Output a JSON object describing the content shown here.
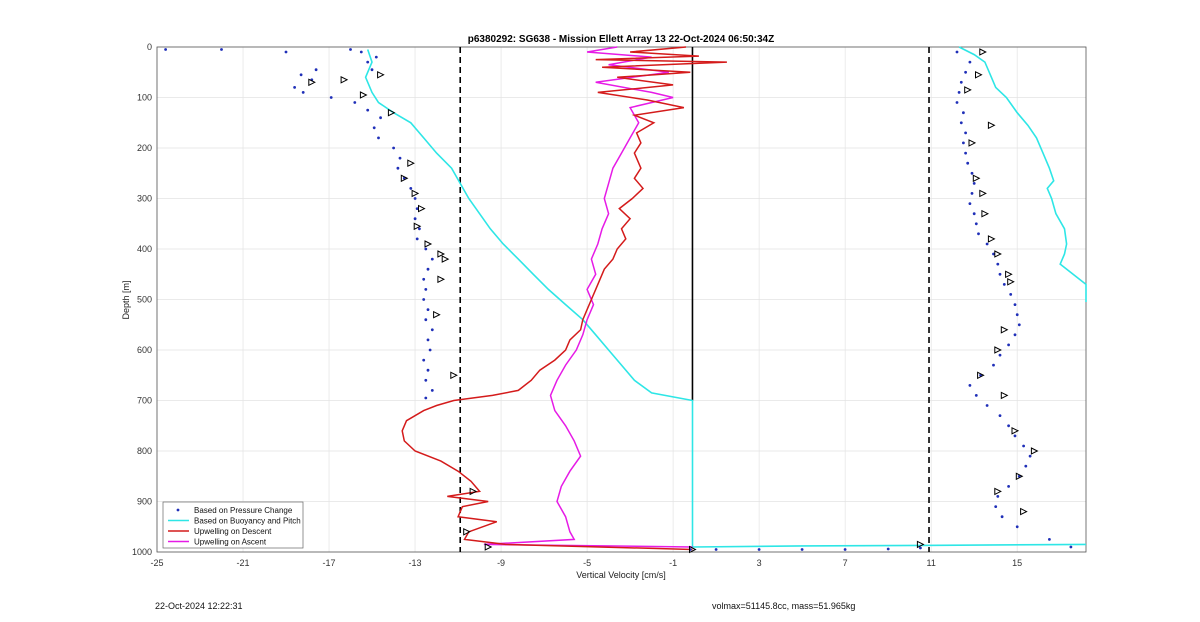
{
  "chart_data": {
    "type": "line",
    "title": "p6380292: SG638 - Mission Ellett Array 13 22-Oct-2024 06:50:34Z",
    "xlabel": "Vertical Velocity [cm/s]",
    "ylabel": "Depth [m]",
    "xlim": [
      -25,
      18.2
    ],
    "ylim": [
      1000,
      0
    ],
    "x_ticks": [
      "-25",
      "-21",
      "-17",
      "-13",
      "-9",
      "-5",
      "-1",
      "3",
      "7",
      "11",
      "15"
    ],
    "y_ticks": [
      "0",
      "100",
      "200",
      "300",
      "400",
      "500",
      "600",
      "700",
      "800",
      "900",
      "1000"
    ],
    "grid": true,
    "legend_position": "bottom-left",
    "reference_lines": [
      {
        "x": -10.9,
        "style": "dashed"
      },
      {
        "x": 10.9,
        "style": "dashed"
      },
      {
        "x": -0.1,
        "style": "solid",
        "y_range": [
          0,
          700
        ]
      }
    ],
    "series": [
      {
        "name": "Based on Pressure Change",
        "style": "points",
        "color": "#1f2fb8",
        "descent": [
          [
            -15.5,
            10
          ],
          [
            -14.8,
            20
          ],
          [
            -15.2,
            30
          ],
          [
            -15.0,
            45
          ],
          [
            -17.6,
            45
          ],
          [
            -18.3,
            55
          ],
          [
            -17.8,
            65
          ],
          [
            -18.6,
            80
          ],
          [
            -18.2,
            90
          ],
          [
            -16.9,
            100
          ],
          [
            -15.8,
            110
          ],
          [
            -15.2,
            125
          ],
          [
            -14.6,
            140
          ],
          [
            -14.9,
            160
          ],
          [
            -14.7,
            180
          ],
          [
            -14.0,
            200
          ],
          [
            -13.7,
            220
          ],
          [
            -13.8,
            240
          ],
          [
            -13.5,
            260
          ],
          [
            -13.2,
            280
          ],
          [
            -13.0,
            300
          ],
          [
            -12.9,
            320
          ],
          [
            -13.0,
            340
          ],
          [
            -12.8,
            360
          ],
          [
            -12.9,
            380
          ],
          [
            -12.5,
            400
          ],
          [
            -12.2,
            420
          ],
          [
            -12.4,
            440
          ],
          [
            -12.6,
            460
          ],
          [
            -12.5,
            480
          ],
          [
            -12.6,
            500
          ],
          [
            -12.4,
            520
          ],
          [
            -12.5,
            540
          ],
          [
            -12.2,
            560
          ],
          [
            -12.4,
            580
          ],
          [
            -12.3,
            600
          ],
          [
            -12.6,
            620
          ],
          [
            -12.4,
            640
          ],
          [
            -12.5,
            660
          ],
          [
            -12.2,
            680
          ],
          [
            -12.5,
            695
          ]
        ],
        "ascent": [
          [
            12.2,
            10
          ],
          [
            12.8,
            30
          ],
          [
            12.6,
            50
          ],
          [
            12.4,
            70
          ],
          [
            12.3,
            90
          ],
          [
            12.2,
            110
          ],
          [
            12.5,
            130
          ],
          [
            12.4,
            150
          ],
          [
            12.6,
            170
          ],
          [
            12.5,
            190
          ],
          [
            12.6,
            210
          ],
          [
            12.7,
            230
          ],
          [
            12.9,
            250
          ],
          [
            13.0,
            270
          ],
          [
            12.9,
            290
          ],
          [
            12.8,
            310
          ],
          [
            13.0,
            330
          ],
          [
            13.1,
            350
          ],
          [
            13.2,
            370
          ],
          [
            13.6,
            390
          ],
          [
            13.9,
            410
          ],
          [
            14.1,
            430
          ],
          [
            14.2,
            450
          ],
          [
            14.4,
            470
          ],
          [
            14.7,
            490
          ],
          [
            14.9,
            510
          ],
          [
            15.0,
            530
          ],
          [
            15.1,
            550
          ],
          [
            14.9,
            570
          ],
          [
            14.6,
            590
          ],
          [
            14.2,
            610
          ],
          [
            13.9,
            630
          ],
          [
            13.3,
            650
          ],
          [
            12.8,
            670
          ],
          [
            13.1,
            690
          ],
          [
            13.6,
            710
          ],
          [
            14.2,
            730
          ],
          [
            14.6,
            750
          ],
          [
            14.9,
            770
          ],
          [
            15.3,
            790
          ],
          [
            15.6,
            810
          ],
          [
            15.4,
            830
          ],
          [
            15.1,
            850
          ],
          [
            14.6,
            870
          ],
          [
            14.1,
            890
          ],
          [
            14.0,
            910
          ],
          [
            14.3,
            930
          ],
          [
            15.0,
            950
          ],
          [
            16.5,
            975
          ],
          [
            17.5,
            990
          ]
        ],
        "surface": [
          [
            -24.6,
            5
          ],
          [
            -22.0,
            5
          ],
          [
            -19.0,
            10
          ],
          [
            -16.0,
            5
          ]
        ],
        "bottom": [
          [
            -0.2,
            995
          ],
          [
            1.0,
            995
          ],
          [
            3.0,
            995
          ],
          [
            5.0,
            995
          ],
          [
            7.0,
            995
          ],
          [
            9.0,
            994
          ],
          [
            10.5,
            992
          ]
        ]
      },
      {
        "name": "Based on Buoyancy and Pitch",
        "style": "line",
        "color": "#2ee6e6",
        "descent": [
          [
            -15.2,
            5
          ],
          [
            -15.0,
            30
          ],
          [
            -15.3,
            60
          ],
          [
            -15.0,
            90
          ],
          [
            -14.7,
            110
          ],
          [
            -14.0,
            130
          ],
          [
            -13.2,
            150
          ],
          [
            -12.6,
            180
          ],
          [
            -12.0,
            210
          ],
          [
            -11.3,
            240
          ],
          [
            -10.9,
            270
          ],
          [
            -10.5,
            300
          ],
          [
            -10.0,
            330
          ],
          [
            -9.5,
            360
          ],
          [
            -8.9,
            390
          ],
          [
            -8.2,
            420
          ],
          [
            -7.5,
            450
          ],
          [
            -6.8,
            480
          ],
          [
            -6.0,
            510
          ],
          [
            -5.2,
            540
          ],
          [
            -4.6,
            570
          ],
          [
            -4.0,
            600
          ],
          [
            -3.4,
            630
          ],
          [
            -2.8,
            660
          ],
          [
            -2.0,
            685
          ],
          [
            -0.1,
            700
          ],
          [
            -0.1,
            800
          ],
          [
            -0.1,
            900
          ],
          [
            -0.1,
            990
          ]
        ],
        "ascent": [
          [
            -0.1,
            990
          ],
          [
            5.0,
            988
          ],
          [
            10.5,
            987
          ],
          [
            18.2,
            985
          ]
        ],
        "ascent_profile": [
          [
            12.3,
            0
          ],
          [
            13.0,
            15
          ],
          [
            13.5,
            30
          ],
          [
            13.8,
            60
          ],
          [
            14.0,
            80
          ],
          [
            14.5,
            100
          ],
          [
            15.0,
            130
          ],
          [
            15.5,
            155
          ],
          [
            15.9,
            180
          ],
          [
            16.2,
            210
          ],
          [
            16.5,
            240
          ],
          [
            16.7,
            265
          ],
          [
            16.4,
            280
          ],
          [
            16.6,
            300
          ],
          [
            16.8,
            330
          ],
          [
            17.2,
            360
          ],
          [
            17.3,
            390
          ],
          [
            17.2,
            410
          ],
          [
            17.0,
            430
          ],
          [
            17.6,
            450
          ],
          [
            18.2,
            470
          ],
          [
            18.2,
            505
          ]
        ]
      },
      {
        "name": "Upwelling on Descent",
        "style": "line",
        "color": "#d41b1b",
        "points": [
          [
            -0.4,
            0
          ],
          [
            -3.0,
            10
          ],
          [
            0.2,
            18
          ],
          [
            -4.6,
            25
          ],
          [
            1.5,
            30
          ],
          [
            -4.3,
            40
          ],
          [
            -0.2,
            50
          ],
          [
            -3.6,
            60
          ],
          [
            -1.0,
            75
          ],
          [
            -4.5,
            90
          ],
          [
            -2.2,
            105
          ],
          [
            -0.5,
            120
          ],
          [
            -2.8,
            135
          ],
          [
            -1.9,
            150
          ],
          [
            -2.7,
            170
          ],
          [
            -2.5,
            190
          ],
          [
            -2.8,
            210
          ],
          [
            -2.5,
            240
          ],
          [
            -2.8,
            260
          ],
          [
            -2.4,
            280
          ],
          [
            -2.9,
            300
          ],
          [
            -3.5,
            320
          ],
          [
            -3.0,
            340
          ],
          [
            -3.4,
            360
          ],
          [
            -3.2,
            380
          ],
          [
            -3.6,
            400
          ],
          [
            -3.8,
            420
          ],
          [
            -4.2,
            440
          ],
          [
            -4.4,
            460
          ],
          [
            -4.6,
            480
          ],
          [
            -4.8,
            500
          ],
          [
            -5.0,
            520
          ],
          [
            -5.2,
            540
          ],
          [
            -5.3,
            560
          ],
          [
            -5.8,
            580
          ],
          [
            -6.0,
            600
          ],
          [
            -6.5,
            620
          ],
          [
            -7.2,
            640
          ],
          [
            -7.6,
            660
          ],
          [
            -8.2,
            680
          ],
          [
            -9.4,
            690
          ],
          [
            -11.2,
            700
          ],
          [
            -12.0,
            710
          ],
          [
            -12.6,
            720
          ],
          [
            -13.4,
            740
          ],
          [
            -13.6,
            760
          ],
          [
            -13.5,
            780
          ],
          [
            -13.0,
            800
          ],
          [
            -11.8,
            820
          ],
          [
            -11.0,
            840
          ],
          [
            -10.4,
            860
          ],
          [
            -10.0,
            880
          ],
          [
            -11.5,
            890
          ],
          [
            -9.6,
            900
          ],
          [
            -10.8,
            910
          ],
          [
            -11.0,
            930
          ],
          [
            -9.2,
            940
          ],
          [
            -10.5,
            960
          ],
          [
            -10.7,
            975
          ],
          [
            -8.8,
            985
          ],
          [
            -0.1,
            995
          ]
        ]
      },
      {
        "name": "Upwelling on Ascent",
        "style": "line",
        "color": "#e61be6",
        "points": [
          [
            -3.6,
            0
          ],
          [
            -5.0,
            10
          ],
          [
            -2.0,
            20
          ],
          [
            -4.0,
            35
          ],
          [
            -1.2,
            50
          ],
          [
            -4.6,
            70
          ],
          [
            -2.0,
            90
          ],
          [
            -1.0,
            100
          ],
          [
            -3.0,
            120
          ],
          [
            -2.6,
            150
          ],
          [
            -3.0,
            180
          ],
          [
            -3.4,
            210
          ],
          [
            -3.8,
            240
          ],
          [
            -4.0,
            270
          ],
          [
            -4.2,
            300
          ],
          [
            -4.0,
            330
          ],
          [
            -4.3,
            360
          ],
          [
            -4.5,
            390
          ],
          [
            -4.8,
            420
          ],
          [
            -4.6,
            450
          ],
          [
            -5.0,
            480
          ],
          [
            -4.7,
            510
          ],
          [
            -5.0,
            540
          ],
          [
            -5.2,
            570
          ],
          [
            -5.5,
            600
          ],
          [
            -6.0,
            630
          ],
          [
            -6.4,
            660
          ],
          [
            -6.7,
            690
          ],
          [
            -6.5,
            720
          ],
          [
            -6.0,
            750
          ],
          [
            -5.6,
            780
          ],
          [
            -5.3,
            810
          ],
          [
            -5.8,
            840
          ],
          [
            -6.2,
            870
          ],
          [
            -6.4,
            900
          ],
          [
            -6.0,
            930
          ],
          [
            -5.8,
            960
          ],
          [
            -5.6,
            975
          ],
          [
            -9.8,
            985
          ],
          [
            -0.1,
            990
          ]
        ]
      }
    ],
    "legend": {
      "entries": [
        {
          "label": "Based on Pressure Change",
          "color": "#1f2fb8",
          "marker": "dot"
        },
        {
          "label": "Based on Buoyancy and Pitch",
          "color": "#2ee6e6",
          "marker": "line"
        },
        {
          "label": "Upwelling on Descent",
          "color": "#d41b1b",
          "marker": "line"
        },
        {
          "label": "Upwelling on Ascent",
          "color": "#e61be6",
          "marker": "line"
        }
      ]
    },
    "markers_triangles": [
      [
        -14.6,
        55
      ],
      [
        -16.3,
        65
      ],
      [
        -17.8,
        70
      ],
      [
        -15.4,
        95
      ],
      [
        -14.1,
        130
      ],
      [
        -13.2,
        230
      ],
      [
        -13.5,
        260
      ],
      [
        -13.0,
        290
      ],
      [
        -12.7,
        320
      ],
      [
        -12.9,
        355
      ],
      [
        -12.4,
        390
      ],
      [
        -11.8,
        410
      ],
      [
        -11.6,
        420
      ],
      [
        -11.8,
        460
      ],
      [
        -12.0,
        530
      ],
      [
        -11.2,
        650
      ],
      [
        -10.3,
        880
      ],
      [
        -10.6,
        960
      ],
      [
        -9.6,
        990
      ],
      [
        13.4,
        10
      ],
      [
        13.2,
        55
      ],
      [
        12.7,
        85
      ],
      [
        13.8,
        155
      ],
      [
        12.9,
        190
      ],
      [
        13.1,
        260
      ],
      [
        13.4,
        290
      ],
      [
        13.5,
        330
      ],
      [
        13.8,
        380
      ],
      [
        14.1,
        410
      ],
      [
        14.6,
        450
      ],
      [
        14.7,
        465
      ],
      [
        14.4,
        560
      ],
      [
        14.1,
        600
      ],
      [
        13.3,
        650
      ],
      [
        14.4,
        690
      ],
      [
        14.9,
        760
      ],
      [
        15.8,
        800
      ],
      [
        15.1,
        850
      ],
      [
        14.1,
        880
      ],
      [
        15.3,
        920
      ],
      [
        10.5,
        985
      ],
      [
        -0.1,
        995
      ]
    ],
    "footer": {
      "left": "22-Oct-2024 12:22:31",
      "right": "volmax=51145.8cc, mass=51.965kg"
    }
  }
}
